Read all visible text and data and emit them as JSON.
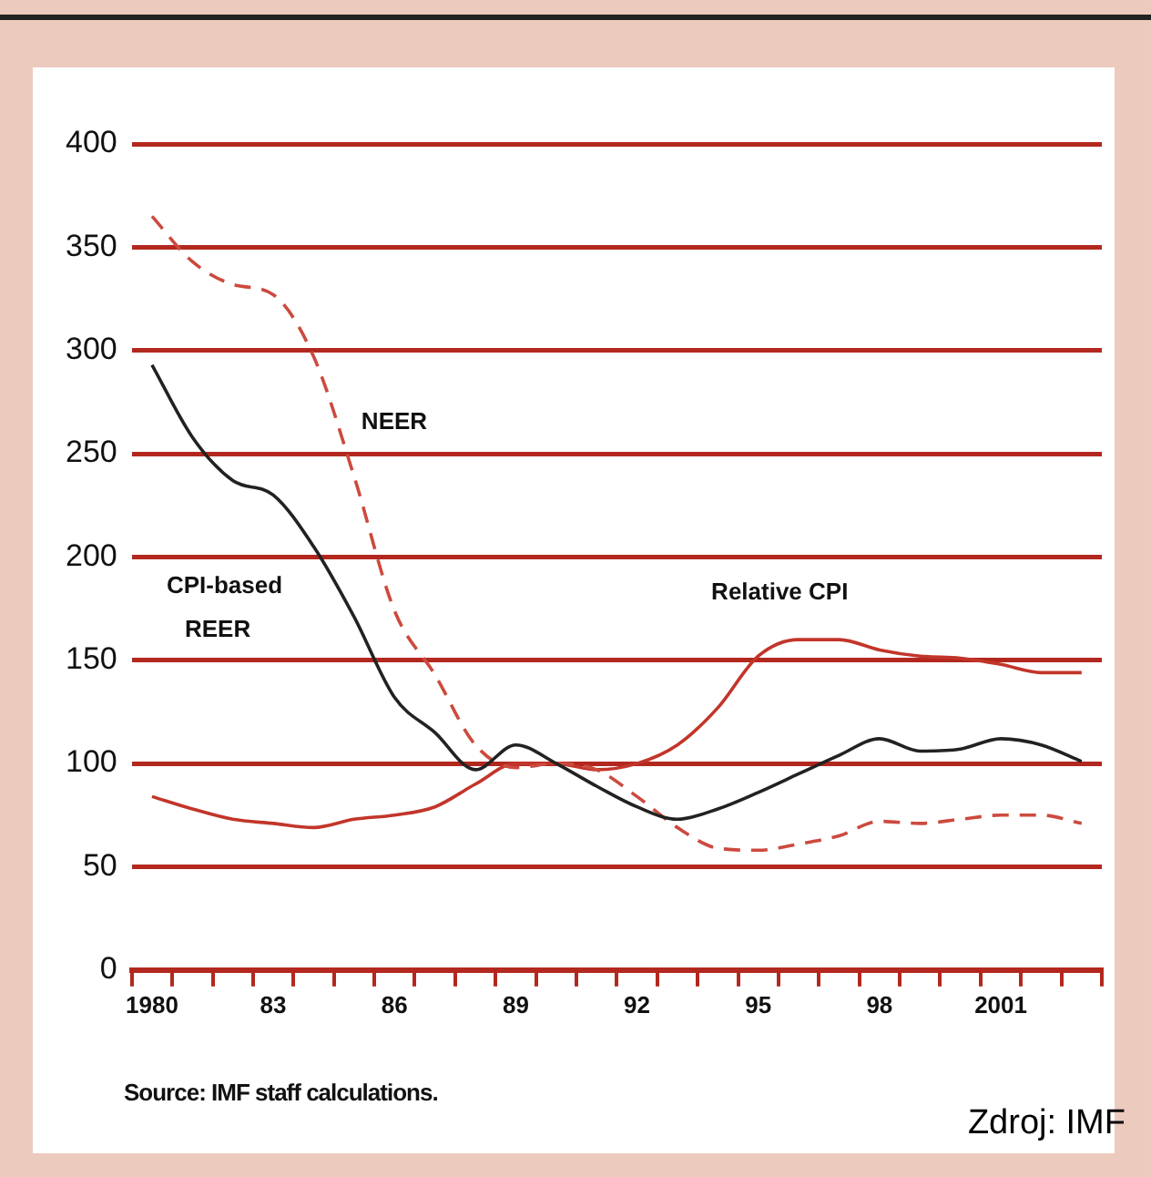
{
  "chart_data": {
    "type": "line",
    "categories": [
      "1980",
      null,
      null,
      "83",
      null,
      null,
      "86",
      null,
      null,
      "89",
      null,
      null,
      "92",
      null,
      null,
      "95",
      null,
      null,
      "98",
      null,
      null,
      "2001",
      null,
      null
    ],
    "series": [
      {
        "name": "CPI-based REER",
        "color": "#222222",
        "line_style": "solid",
        "values": [
          293,
          258,
          237,
          230,
          205,
          171,
          132,
          115,
          97,
          109,
          100,
          89,
          79,
          73,
          78,
          86,
          95,
          104,
          112,
          106,
          107,
          112,
          109,
          101
        ]
      },
      {
        "name": "NEER",
        "color": "#cc4a3e",
        "line_style": "dashed",
        "values": [
          365,
          343,
          332,
          327,
          297,
          239,
          174,
          143,
          109,
          98,
          100,
          97,
          84,
          69,
          59,
          58,
          61,
          65,
          72,
          71,
          73,
          75,
          75,
          71
        ]
      },
      {
        "name": "Relative CPI",
        "color": "#c2352a",
        "line_style": "solid",
        "values": [
          84,
          78,
          73,
          71,
          69,
          73,
          75,
          79,
          90,
          100,
          100,
          97,
          100,
          109,
          127,
          152,
          160,
          160,
          155,
          152,
          151,
          148,
          144,
          144
        ]
      }
    ],
    "ylim": [
      0,
      400
    ],
    "yticks": [
      0,
      50,
      100,
      150,
      200,
      250,
      300,
      350,
      400
    ],
    "grid": "y",
    "legend": false,
    "marker": "none",
    "annotations": [
      "Source: IMF staff calculations.",
      "Zdroj: IMF"
    ]
  }
}
